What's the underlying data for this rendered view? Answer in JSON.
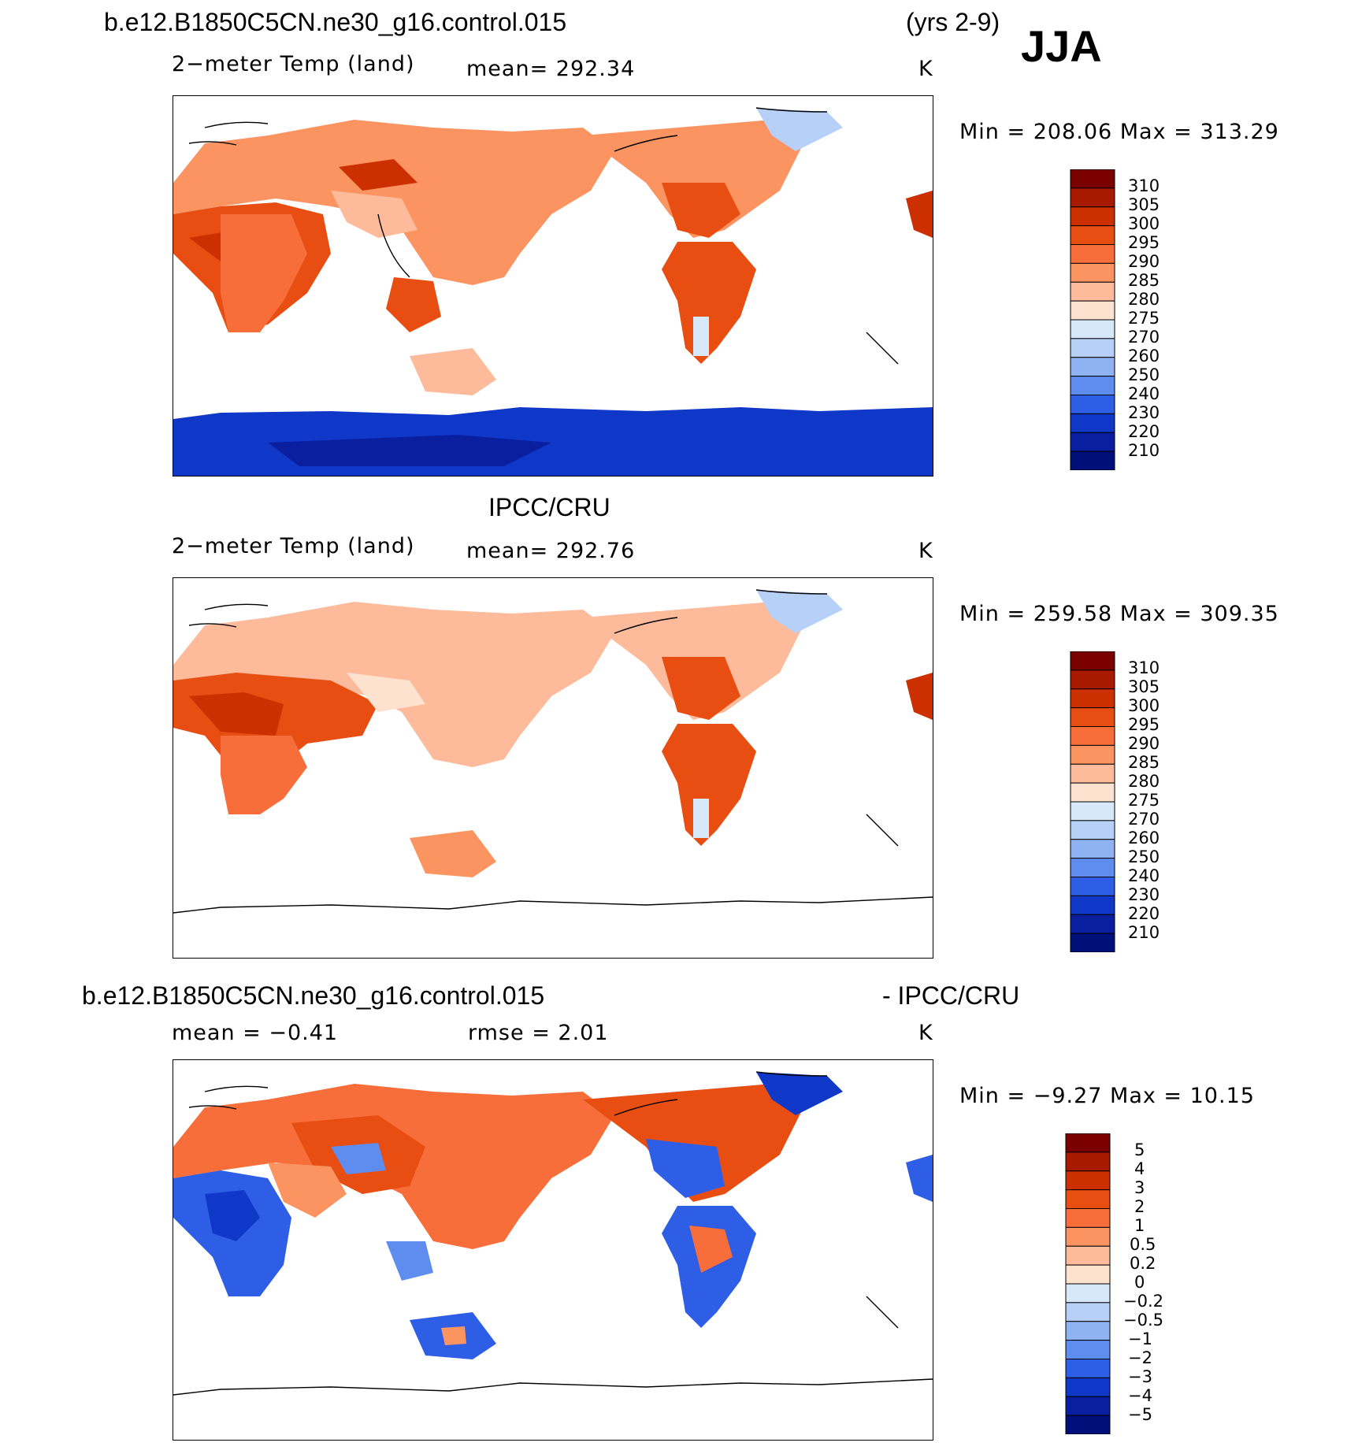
{
  "header": {
    "case_name": "b.e12.B1850C5CN.ne30_g16.control.015",
    "years": "(yrs 2-9)",
    "season": "JJA"
  },
  "panels": [
    {
      "id": "model",
      "field": "2−meter Temp (land)",
      "stat": "mean=  292.34",
      "units": "K",
      "minmax": "Min  =  208.06  Max  =  313.29",
      "colorbar": [
        "310",
        "305",
        "300",
        "295",
        "290",
        "285",
        "280",
        "275",
        "270",
        "260",
        "250",
        "240",
        "230",
        "220",
        "210"
      ],
      "colors": [
        "#7a0000",
        "#a81a00",
        "#cc2f00",
        "#e84d12",
        "#f76e3a",
        "#fc9462",
        "#fdbb9b",
        "#fde3cf",
        "#d6e8fa",
        "#b7d0f8",
        "#8fb2f3",
        "#5f8cef",
        "#2e5ee6",
        "#1038c8",
        "#0a1fa0",
        "#00107a"
      ]
    },
    {
      "id": "obs",
      "center_title": "IPCC/CRU",
      "field": "2−meter Temp (land)",
      "stat": "mean=  292.76",
      "units": "K",
      "minmax": "Min  =  259.58  Max  =  309.35",
      "colorbar": [
        "310",
        "305",
        "300",
        "295",
        "290",
        "285",
        "280",
        "275",
        "270",
        "260",
        "250",
        "240",
        "230",
        "220",
        "210"
      ],
      "colors": [
        "#7a0000",
        "#a81a00",
        "#cc2f00",
        "#e84d12",
        "#f76e3a",
        "#fc9462",
        "#fdbb9b",
        "#fde3cf",
        "#d6e8fa",
        "#b7d0f8",
        "#8fb2f3",
        "#5f8cef",
        "#2e5ee6",
        "#1038c8",
        "#0a1fa0",
        "#00107a"
      ]
    },
    {
      "id": "diff",
      "left_title": "b.e12.B1850C5CN.ne30_g16.control.015",
      "right_title": "- IPCC/CRU",
      "field": "mean  =    −0.41",
      "stat": "rmse  =     2.01",
      "units": "K",
      "minmax": "Min  =    −9.27  Max  =    10.15",
      "colorbar": [
        "5",
        "4",
        "3",
        "2",
        "1",
        "0.5",
        "0.2",
        "0",
        "−0.2",
        "−0.5",
        "−1",
        "−2",
        "−3",
        "−4",
        "−5"
      ],
      "colors": [
        "#7a0000",
        "#a81a00",
        "#cc2f00",
        "#e84d12",
        "#f76e3a",
        "#fc9462",
        "#fdbb9b",
        "#fde3cf",
        "#d6e8fa",
        "#b7d0f8",
        "#8fb2f3",
        "#5f8cef",
        "#2e5ee6",
        "#1038c8",
        "#0a1fa0",
        "#00107a"
      ]
    }
  ]
}
